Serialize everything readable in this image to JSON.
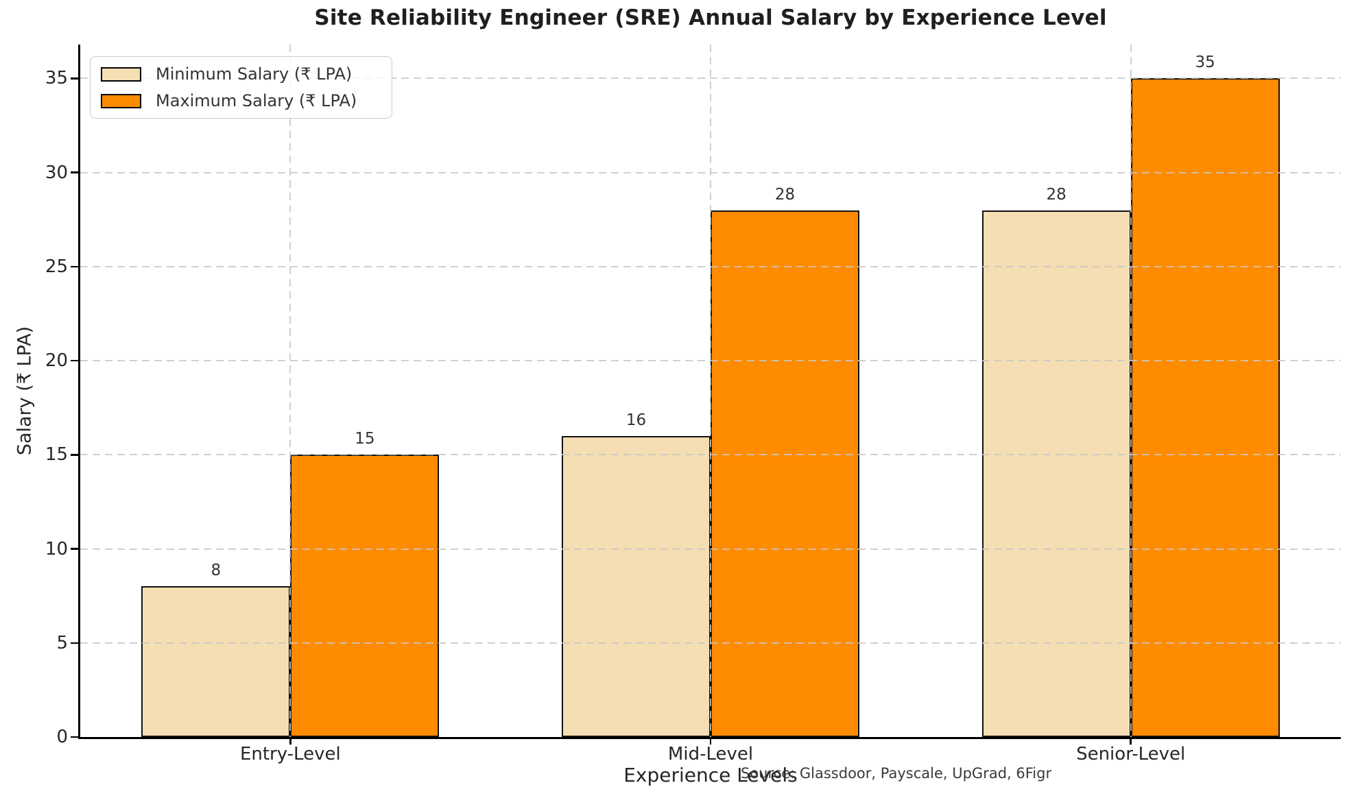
{
  "figure": {
    "title": "Site Reliability Engineer (SRE) Annual Salary by Experience Level",
    "source_note": "Source: Glassdoor, Payscale, UpGrad, 6Figr"
  },
  "chart_data": {
    "type": "bar",
    "title": "Site Reliability Engineer (SRE) Annual Salary by Experience Level",
    "categories": [
      "Entry-Level",
      "Mid-Level",
      "Senior-Level"
    ],
    "series": [
      {
        "name": "Minimum Salary (₹ LPA)",
        "values": [
          8,
          16,
          28
        ],
        "color": "#F5DEB3"
      },
      {
        "name": "Maximum Salary (₹ LPA)",
        "values": [
          15,
          28,
          35
        ],
        "color": "#FF8C00"
      }
    ],
    "xlabel": "Experience Levels",
    "ylabel": "Salary (₹ LPA)",
    "ylim": [
      0,
      36.8
    ],
    "yticks": [
      0,
      5,
      10,
      15,
      20,
      25,
      30,
      35
    ],
    "grid": true,
    "grid_style": "dashed",
    "grid_color": "#c7c7c7",
    "legend_position": "upper-left",
    "bar_edge_color": "#111111",
    "annotation": "Source: Glassdoor, Payscale, UpGrad, 6Figr"
  }
}
